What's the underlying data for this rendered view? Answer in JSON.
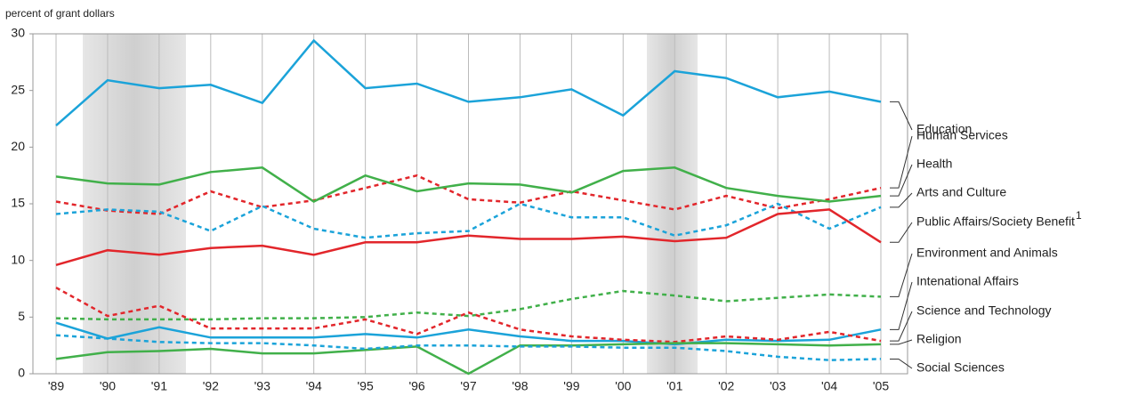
{
  "chart_data": {
    "type": "line",
    "y_axis_label": "percent of grant dollars",
    "categories": [
      "'89",
      "'90",
      "'91",
      "'92",
      "'93",
      "'94",
      "'95",
      "'96",
      "'97",
      "'98",
      "'99",
      "'00",
      "'01",
      "'02",
      "'03",
      "'04",
      "'05"
    ],
    "ylim": [
      0,
      30
    ],
    "yticks": [
      0,
      5,
      10,
      15,
      20,
      25,
      30
    ],
    "grid": "vertical",
    "series": [
      {
        "name": "Education",
        "color": "#1ba3d9",
        "dashed": false,
        "values": [
          21.9,
          25.9,
          25.2,
          25.5,
          23.9,
          29.4,
          25.2,
          25.6,
          24.0,
          24.4,
          25.1,
          22.8,
          26.7,
          26.1,
          24.4,
          24.9,
          24.0
        ]
      },
      {
        "name": "Human Services",
        "color": "#e2262b",
        "dashed": true,
        "values": [
          15.2,
          14.4,
          14.1,
          16.1,
          14.7,
          15.3,
          16.4,
          17.5,
          15.4,
          15.1,
          16.1,
          15.3,
          14.5,
          15.7,
          14.6,
          15.4,
          16.4
        ]
      },
      {
        "name": "Health",
        "color": "#41b04a",
        "dashed": false,
        "values": [
          17.4,
          16.8,
          16.7,
          17.8,
          18.2,
          15.2,
          17.5,
          16.1,
          16.8,
          16.7,
          16.0,
          17.9,
          18.2,
          16.4,
          15.7,
          15.2,
          15.7
        ]
      },
      {
        "name": "Arts and Culture",
        "color": "#1ba3d9",
        "dashed": true,
        "values": [
          14.1,
          14.5,
          14.3,
          12.6,
          14.8,
          12.8,
          12.0,
          12.4,
          12.6,
          15.0,
          13.8,
          13.8,
          12.2,
          13.1,
          15.0,
          12.8,
          14.7
        ]
      },
      {
        "name": "Public Affairs/Society Benefit",
        "note_marker": "1",
        "color": "#e2262b",
        "dashed": false,
        "values": [
          9.6,
          10.9,
          10.5,
          11.1,
          11.3,
          10.5,
          11.6,
          11.6,
          12.2,
          11.9,
          11.9,
          12.1,
          11.7,
          12.0,
          14.1,
          14.5,
          11.6
        ]
      },
      {
        "name": "Environment and Animals",
        "color": "#41b04a",
        "dashed": true,
        "values": [
          4.9,
          4.8,
          4.8,
          4.8,
          4.9,
          4.9,
          5.0,
          5.4,
          5.1,
          5.7,
          6.6,
          7.3,
          6.9,
          6.4,
          6.7,
          7.0,
          6.8
        ]
      },
      {
        "name": "Intenational Affairs",
        "color": "#1ba3d9",
        "dashed": false,
        "values": [
          4.5,
          3.1,
          4.1,
          3.2,
          3.2,
          3.2,
          3.5,
          3.2,
          3.9,
          3.3,
          2.9,
          2.9,
          2.6,
          3.0,
          2.9,
          3.0,
          3.9
        ]
      },
      {
        "name": "Science and Technology",
        "color": "#e2262b",
        "dashed": true,
        "values": [
          7.6,
          5.1,
          6.0,
          4.0,
          4.0,
          4.0,
          4.8,
          3.5,
          5.4,
          3.9,
          3.3,
          3.0,
          2.8,
          3.3,
          3.0,
          3.7,
          2.9
        ]
      },
      {
        "name": "Religion",
        "color": "#41b04a",
        "dashed": false,
        "values": [
          1.3,
          1.9,
          2.0,
          2.2,
          1.8,
          1.8,
          2.1,
          2.4,
          0.0,
          2.5,
          2.5,
          2.6,
          2.7,
          2.7,
          2.6,
          2.5,
          2.6
        ]
      },
      {
        "name": "Social Sciences",
        "color": "#1ba3d9",
        "dashed": true,
        "values": [
          3.4,
          3.1,
          2.8,
          2.7,
          2.7,
          2.5,
          2.2,
          2.5,
          2.5,
          2.4,
          2.4,
          2.3,
          2.3,
          2.0,
          1.5,
          1.2,
          1.3
        ]
      }
    ]
  }
}
